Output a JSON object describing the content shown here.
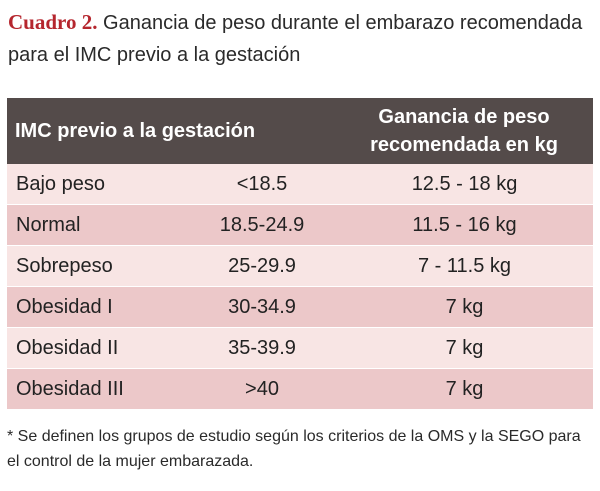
{
  "caption": {
    "label": "Cuadro 2.",
    "text": "Ganancia de peso durante el embarazo recomendada para el IMC previo a la gestación"
  },
  "table": {
    "headers": {
      "col1": "IMC previo a la gestación",
      "col2": "Ganancia de peso recomendada en kg"
    },
    "rows": [
      {
        "category": "Bajo peso",
        "imc": "<18.5",
        "gain": "12.5 - 18 kg"
      },
      {
        "category": "Normal",
        "imc": "18.5-24.9",
        "gain": "11.5 - 16 kg"
      },
      {
        "category": "Sobrepeso",
        "imc": "25-29.9",
        "gain": "7 - 11.5 kg"
      },
      {
        "category": "Obesidad I",
        "imc": "30-34.9",
        "gain": "7 kg"
      },
      {
        "category": "Obesidad II",
        "imc": "35-39.9",
        "gain": "7 kg"
      },
      {
        "category": "Obesidad III",
        "imc": ">40",
        "gain": "7 kg"
      }
    ]
  },
  "footnote": "* Se definen los grupos de estudio según los criterios de la OMS y la SEGO para el control de la mujer embarazada."
}
